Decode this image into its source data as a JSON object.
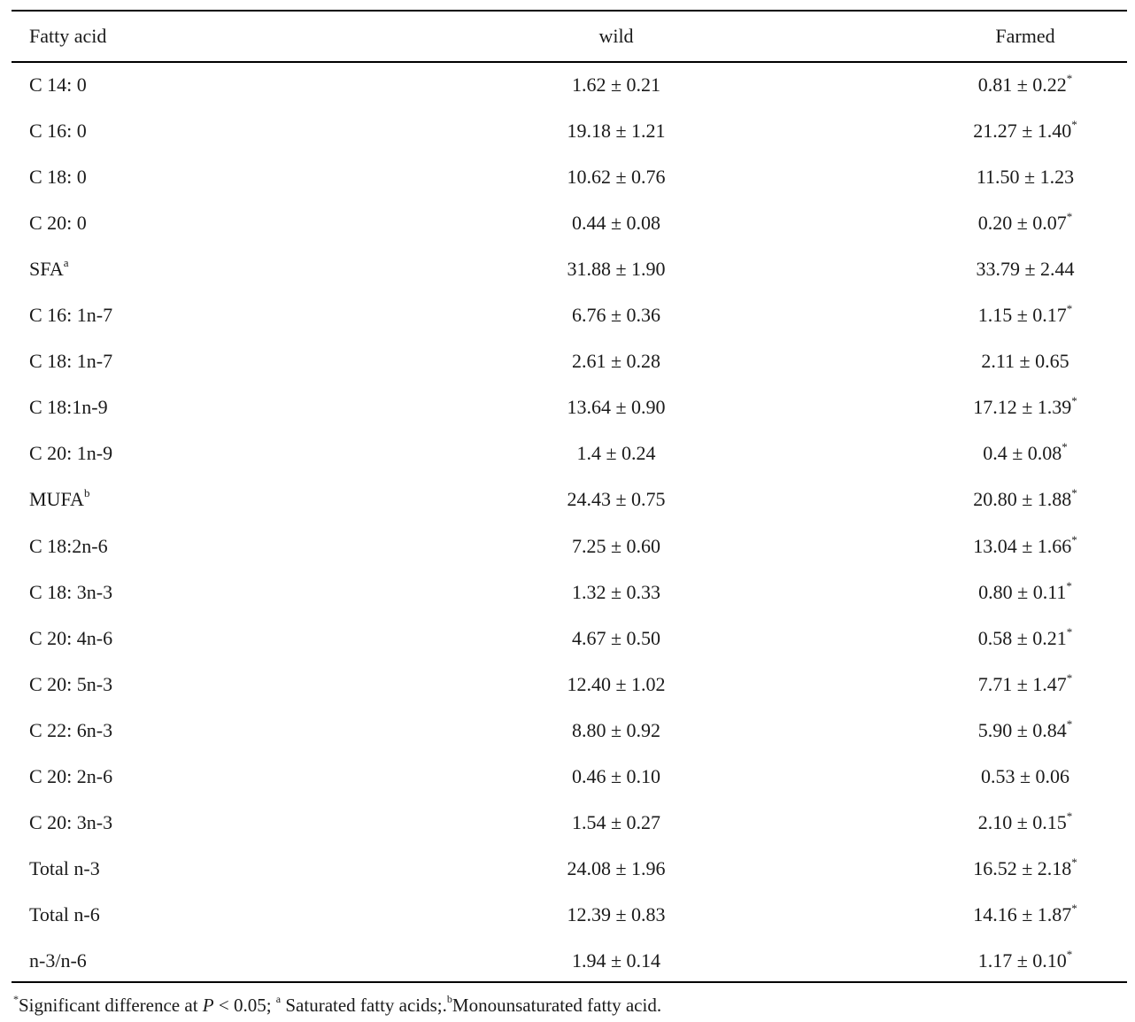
{
  "table": {
    "headers": [
      "Fatty acid",
      "wild",
      "Farmed"
    ],
    "rows": [
      {
        "name": "C 14: 0",
        "name_sup": "",
        "wild": "1.62 ± 0.21",
        "farmed": "0.81 ± 0.22",
        "farmed_sup": "*"
      },
      {
        "name": "C 16: 0",
        "name_sup": "",
        "wild": "19.18 ± 1.21",
        "farmed": "21.27 ± 1.40",
        "farmed_sup": "*"
      },
      {
        "name": "C 18: 0",
        "name_sup": "",
        "wild": "10.62 ± 0.76",
        "farmed": "11.50 ± 1.23",
        "farmed_sup": ""
      },
      {
        "name": "C 20: 0",
        "name_sup": "",
        "wild": "0.44 ± 0.08",
        "farmed": "0.20 ± 0.07",
        "farmed_sup": "*"
      },
      {
        "name": "SFA",
        "name_sup": "a",
        "wild": "31.88 ± 1.90",
        "farmed": "33.79 ± 2.44",
        "farmed_sup": ""
      },
      {
        "name": "C 16: 1n-7",
        "name_sup": "",
        "wild": "6.76 ± 0.36",
        "farmed": "1.15 ± 0.17",
        "farmed_sup": "*"
      },
      {
        "name": "C 18: 1n-7",
        "name_sup": "",
        "wild": "2.61 ± 0.28",
        "farmed": "2.11 ± 0.65",
        "farmed_sup": ""
      },
      {
        "name": "C 18:1n-9",
        "name_sup": "",
        "wild": "13.64 ± 0.90",
        "farmed": "17.12 ± 1.39",
        "farmed_sup": "*"
      },
      {
        "name": "C 20: 1n-9",
        "name_sup": "",
        "wild": "1.4 ± 0.24",
        "farmed": "0.4 ± 0.08",
        "farmed_sup": "*"
      },
      {
        "name": "MUFA",
        "name_sup": "b",
        "wild": "24.43 ± 0.75",
        "farmed": "20.80 ± 1.88",
        "farmed_sup": "*"
      },
      {
        "name": "C 18:2n-6",
        "name_sup": "",
        "wild": "7.25 ± 0.60",
        "farmed": "13.04 ± 1.66",
        "farmed_sup": "*"
      },
      {
        "name": "C 18: 3n-3",
        "name_sup": "",
        "wild": "1.32 ± 0.33",
        "farmed": "0.80 ± 0.11",
        "farmed_sup": "*"
      },
      {
        "name": "C 20: 4n-6",
        "name_sup": "",
        "wild": "4.67 ± 0.50",
        "farmed": "0.58 ± 0.21",
        "farmed_sup": "*"
      },
      {
        "name": "C 20: 5n-3",
        "name_sup": "",
        "wild": "12.40 ± 1.02",
        "farmed": "7.71 ± 1.47",
        "farmed_sup": "*"
      },
      {
        "name": "C 22: 6n-3",
        "name_sup": "",
        "wild": "8.80 ± 0.92",
        "farmed": "5.90 ± 0.84",
        "farmed_sup": "*"
      },
      {
        "name": "C 20: 2n-6",
        "name_sup": "",
        "wild": "0.46 ± 0.10",
        "farmed": "0.53 ± 0.06",
        "farmed_sup": ""
      },
      {
        "name": "C 20: 3n-3",
        "name_sup": "",
        "wild": "1.54 ± 0.27",
        "farmed": "2.10 ± 0.15",
        "farmed_sup": "*"
      },
      {
        "name": "Total n-3",
        "name_sup": "",
        "wild": "24.08 ± 1.96",
        "farmed": "16.52 ± 2.18",
        "farmed_sup": "*"
      },
      {
        "name": "Total n-6",
        "name_sup": "",
        "wild": "12.39 ± 0.83",
        "farmed": "14.16 ± 1.87",
        "farmed_sup": "*"
      },
      {
        "name": "n-3/n-6",
        "name_sup": "",
        "wild": "1.94 ± 0.14",
        "farmed": "1.17 ± 0.10",
        "farmed_sup": "*"
      }
    ]
  },
  "footnote": {
    "sup1": "*",
    "text1": "Significant difference at ",
    "p_italic": "P",
    "text2": " < 0.05; ",
    "sup2": "a",
    "text3": " Saturated fatty acids;.",
    "sup3": "b",
    "text4": "Monounsaturated fatty acid."
  }
}
